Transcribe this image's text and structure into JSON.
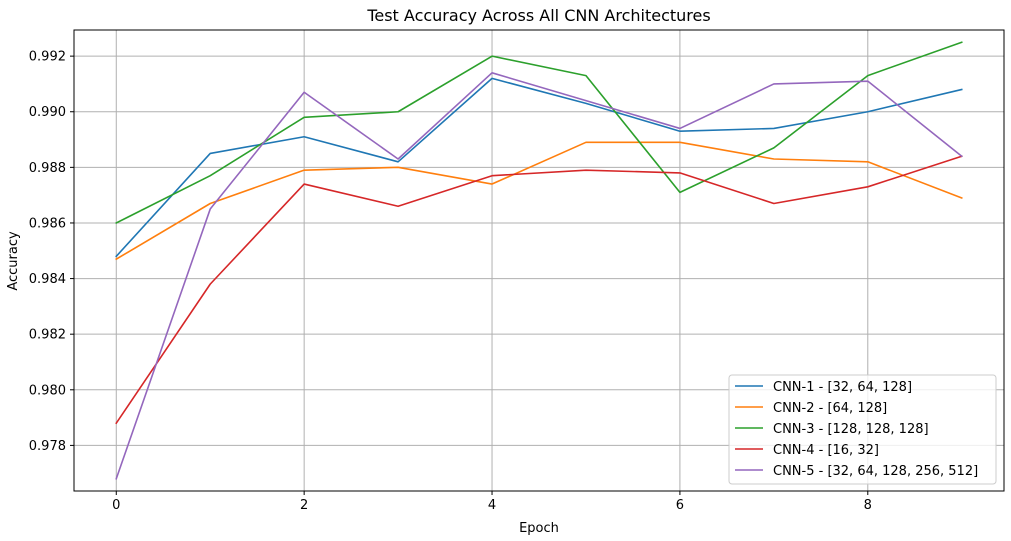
{
  "chart_data": {
    "type": "line",
    "title": "Test Accuracy Across All CNN Architectures",
    "xlabel": "Epoch",
    "ylabel": "Accuracy",
    "xlim": [
      -0.45,
      9.45
    ],
    "ylim": [
      0.97636,
      0.99294
    ],
    "x_ticks": [
      0,
      2,
      4,
      6,
      8
    ],
    "y_ticks": [
      0.978,
      0.98,
      0.982,
      0.984,
      0.986,
      0.988,
      0.99,
      0.992
    ],
    "x_tick_labels": [
      "0",
      "2",
      "4",
      "6",
      "8"
    ],
    "y_tick_labels": [
      "0.978",
      "0.980",
      "0.982",
      "0.984",
      "0.986",
      "0.988",
      "0.990",
      "0.992"
    ],
    "grid": true,
    "legend_position": "bottom-right",
    "x": [
      0,
      1,
      2,
      3,
      4,
      5,
      6,
      7,
      8,
      9
    ],
    "series": [
      {
        "name": "CNN-1 - [32, 64, 128]",
        "color": "#1f77b4",
        "values": [
          0.9848,
          0.9885,
          0.9891,
          0.9882,
          0.9912,
          0.9903,
          0.9893,
          0.9894,
          0.99,
          0.9908
        ]
      },
      {
        "name": "CNN-2 - [64, 128]",
        "color": "#ff7f0e",
        "values": [
          0.9847,
          0.9867,
          0.9879,
          0.988,
          0.9874,
          0.9889,
          0.9889,
          0.9883,
          0.9882,
          0.9869
        ]
      },
      {
        "name": "CNN-3 - [128, 128, 128]",
        "color": "#2ca02c",
        "values": [
          0.986,
          0.9877,
          0.9898,
          0.99,
          0.992,
          0.9913,
          0.9871,
          0.9887,
          0.9913,
          0.9925
        ]
      },
      {
        "name": "CNN-4 - [16, 32]",
        "color": "#d62728",
        "values": [
          0.9788,
          0.9838,
          0.9874,
          0.9866,
          0.9877,
          0.9879,
          0.9878,
          0.9867,
          0.9873,
          0.9884
        ]
      },
      {
        "name": "CNN-5 - [32, 64, 128, 256, 512]",
        "color": "#9467bd",
        "values": [
          0.9768,
          0.9865,
          0.9907,
          0.9883,
          0.9914,
          0.9904,
          0.9894,
          0.991,
          0.9911,
          0.9884
        ]
      }
    ]
  }
}
